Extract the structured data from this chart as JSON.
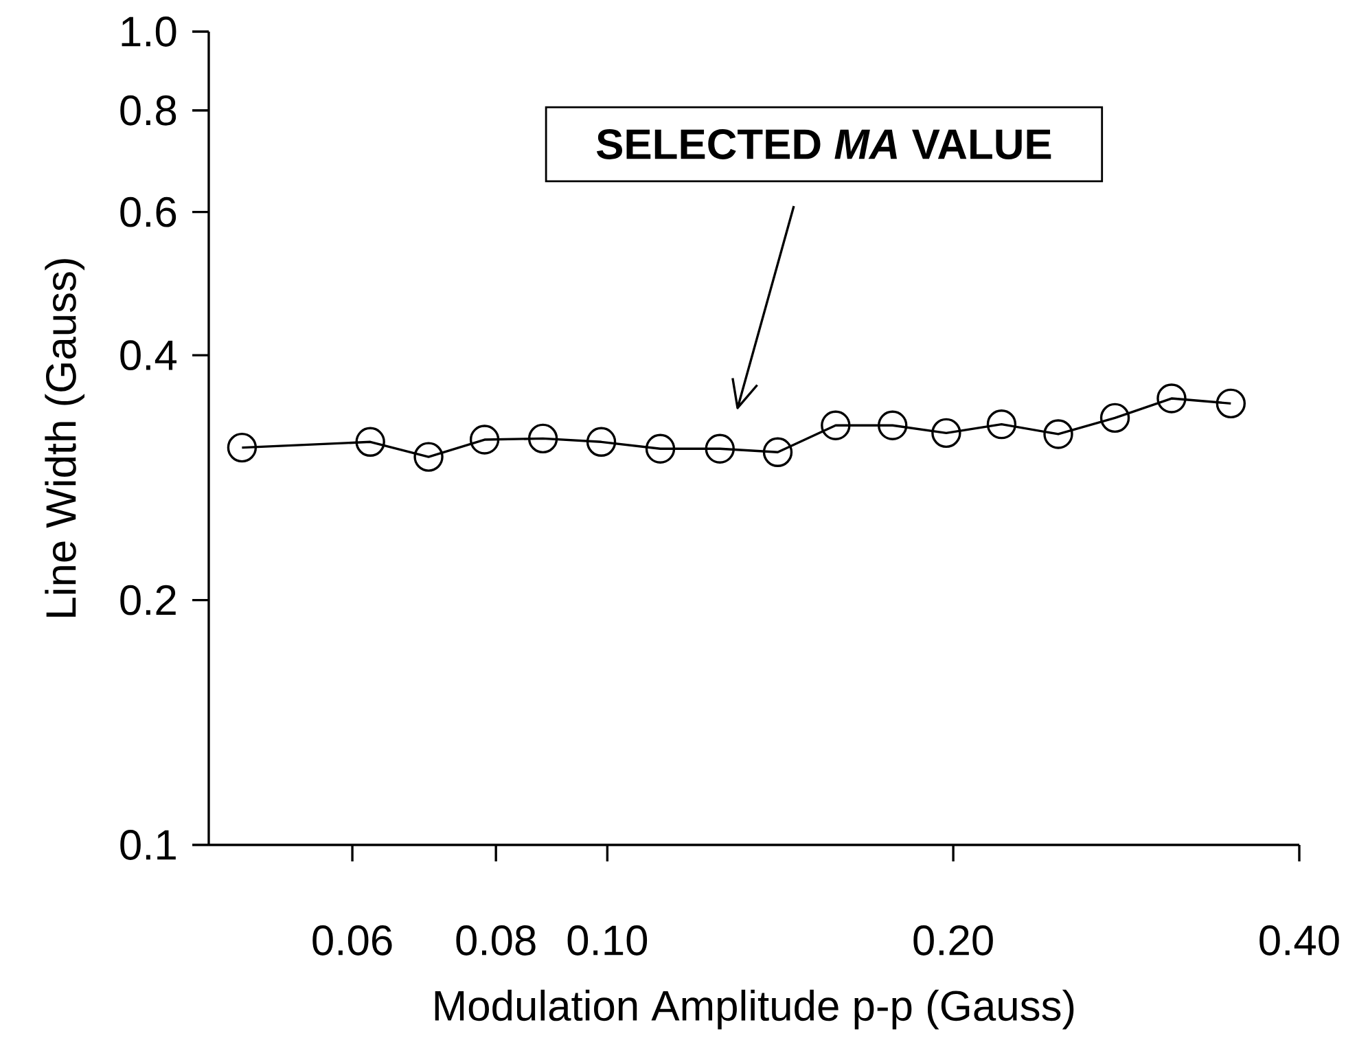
{
  "chart_data": {
    "type": "line",
    "xlabel": "Modulation Amplitude p-p (Gauss)",
    "ylabel": "Line Width (Gauss)",
    "log": "xy",
    "xlim": [
      0.045,
      0.4
    ],
    "ylim": [
      0.1,
      1.0
    ],
    "xticks": [
      0.06,
      0.08,
      {
        "value": 0.1,
        "label": "0.10"
      },
      {
        "value": 0.2,
        "label": "0.20"
      },
      {
        "value": 0.4,
        "label": "0.40"
      }
    ],
    "yticks": [
      0.1,
      0.2,
      0.4,
      0.6,
      0.8,
      {
        "value": 1.0,
        "label": "1.0"
      }
    ],
    "marker": "circle",
    "line_style": "solid",
    "series": [
      {
        "color": "#000000",
        "x": [
          0.0481,
          0.0622,
          0.0699,
          0.0782,
          0.0879,
          0.0988,
          0.1112,
          0.1253,
          0.1407,
          0.158,
          0.1771,
          0.1972,
          0.2203,
          0.2468,
          0.2765,
          0.3097,
          0.3488
        ],
        "values": [
          0.308,
          0.313,
          0.3,
          0.315,
          0.316,
          0.313,
          0.307,
          0.307,
          0.304,
          0.328,
          0.328,
          0.321,
          0.329,
          0.32,
          0.335,
          0.354,
          0.349
        ]
      }
    ],
    "annotations": [
      "SELECTED *MA* VALUE"
    ]
  }
}
